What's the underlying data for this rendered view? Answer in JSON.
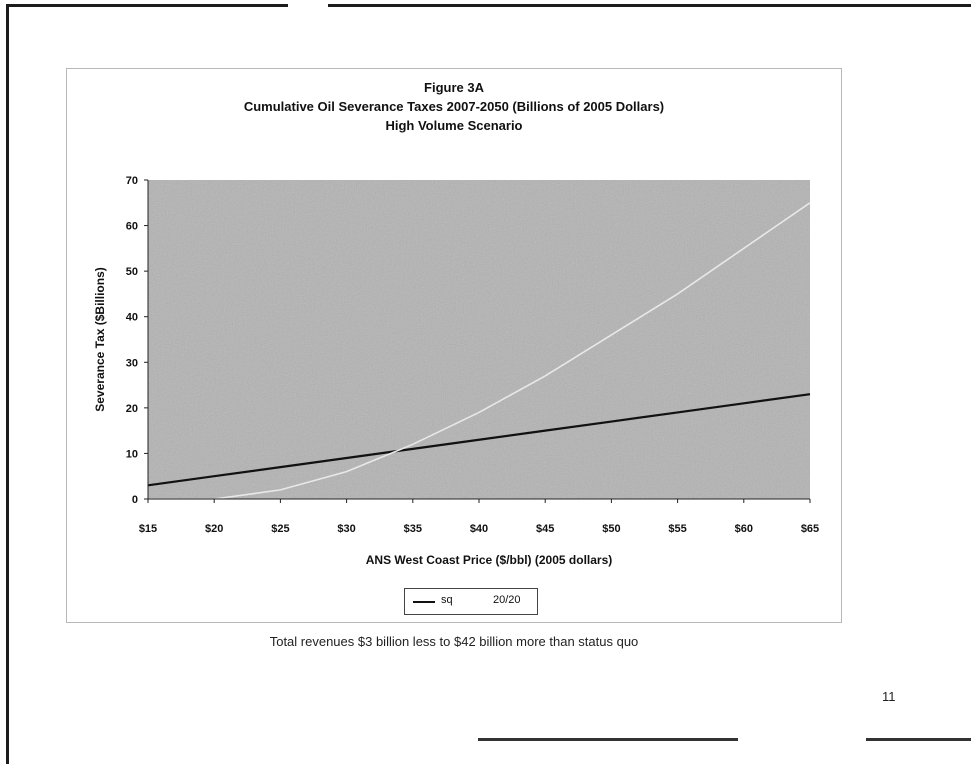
{
  "chart_data": {
    "type": "line",
    "title": "Figure 3A",
    "subtitle": "Cumulative Oil Severance Taxes 2007-2050 (Billions of 2005 Dollars)",
    "subtitle2": "High Volume Scenario",
    "xlabel": "ANS West Coast Price ($/bbl) (2005 dollars)",
    "ylabel": "Severance Tax ($Billions)",
    "xlim": [
      15,
      65
    ],
    "ylim": [
      0,
      70
    ],
    "x_ticks": [
      15,
      20,
      25,
      30,
      35,
      40,
      45,
      50,
      55,
      60,
      65
    ],
    "x_tick_labels": [
      "$15",
      "$20",
      "$25",
      "$30",
      "$35",
      "$40",
      "$45",
      "$50",
      "$55",
      "$60",
      "$65"
    ],
    "y_ticks": [
      0,
      10,
      20,
      30,
      40,
      50,
      60,
      70
    ],
    "y_tick_labels": [
      "0",
      "10",
      "20",
      "30",
      "40",
      "50",
      "60",
      "70"
    ],
    "grid": false,
    "legend_position": "bottom",
    "series": [
      {
        "name": "sq",
        "color": "#111111",
        "x": [
          15,
          20,
          25,
          30,
          35,
          40,
          45,
          50,
          55,
          60,
          65
        ],
        "y": [
          3,
          5,
          7,
          9,
          11,
          13,
          15,
          17,
          19,
          21,
          23
        ]
      },
      {
        "name": "20/20",
        "color": "#e8e8e8",
        "x": [
          15,
          20,
          25,
          30,
          35,
          40,
          45,
          50,
          55,
          60,
          65
        ],
        "y": [
          0,
          0,
          2,
          6,
          12,
          19,
          27,
          36,
          45,
          55,
          65
        ]
      }
    ]
  },
  "caption": "Total revenues $3 billion less to $42 billion more than status quo",
  "page_number": "11"
}
